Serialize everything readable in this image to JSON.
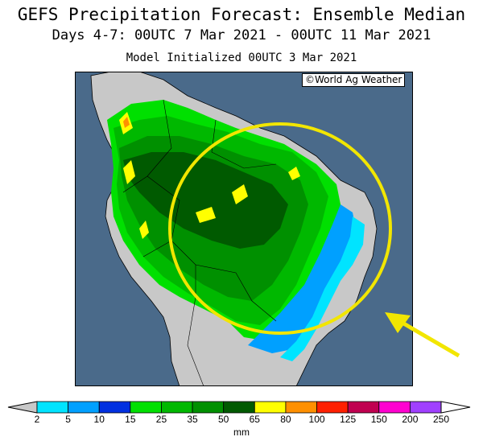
{
  "header": {
    "title": "GEFS Precipitation Forecast: Ensemble Median",
    "period": "Days 4-7: 00UTC 7 Mar 2021 - 00UTC 11 Mar 2021",
    "init": "Model Initialized 00UTC 3 Mar 2021"
  },
  "map": {
    "credit": "©World Ag Weather",
    "region": "South America",
    "ocean_color": "#4a6a8a",
    "dry_land_color": "#c8c8c8",
    "highlight_color": "#f2e600"
  },
  "scale": {
    "units": "mm",
    "ticks": [
      "2",
      "5",
      "10",
      "15",
      "25",
      "35",
      "50",
      "65",
      "80",
      "100",
      "125",
      "150",
      "200",
      "250"
    ],
    "colors": [
      "#00e4ff",
      "#00a0ff",
      "#0030e0",
      "#00e000",
      "#00b800",
      "#009000",
      "#005a00",
      "#ffff00",
      "#ff9000",
      "#ff2000",
      "#c00050",
      "#ff00d0",
      "#a040ff"
    ]
  }
}
